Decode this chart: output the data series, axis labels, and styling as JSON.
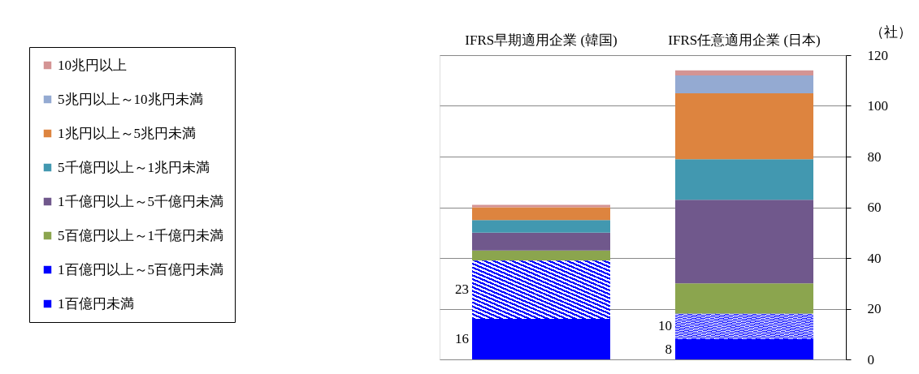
{
  "chart_data": {
    "type": "bar",
    "stacked": true,
    "ylabel": "（社）",
    "categories": [
      "IFRS早期適用企業 (韓国)",
      "IFRS任意適用企業 (日本)"
    ],
    "series": [
      {
        "name": "1百億円未満",
        "color": "#0000ff",
        "values": [
          16,
          8
        ],
        "value_labels": [
          "16",
          "8"
        ]
      },
      {
        "name": "1百億円以上～5百億円未満",
        "color": "#0000ff",
        "values": [
          23,
          10
        ],
        "value_labels": [
          "23",
          "10"
        ]
      },
      {
        "name": "5百億円以上～1千億円未満",
        "color": "#8ba54e",
        "values": [
          4,
          12
        ]
      },
      {
        "name": "1千億円以上～5千億円未満",
        "color": "#70588c",
        "values": [
          7,
          33
        ]
      },
      {
        "name": "5千億円以上～1兆円未満",
        "color": "#4298b0",
        "values": [
          5,
          16
        ]
      },
      {
        "name": "1兆円以上～5兆円未満",
        "color": "#dd843f",
        "values": [
          5,
          26
        ]
      },
      {
        "name": "5兆円以上～10兆円未満",
        "color": "#94aad2",
        "values": [
          0,
          7
        ]
      },
      {
        "name": "10兆円以上",
        "color": "#d49494",
        "values": [
          1,
          2
        ]
      }
    ],
    "ylim": [
      0,
      120
    ],
    "yticks": [
      0,
      20,
      40,
      60,
      80,
      100,
      120
    ],
    "grid": "y",
    "legend": "left"
  }
}
